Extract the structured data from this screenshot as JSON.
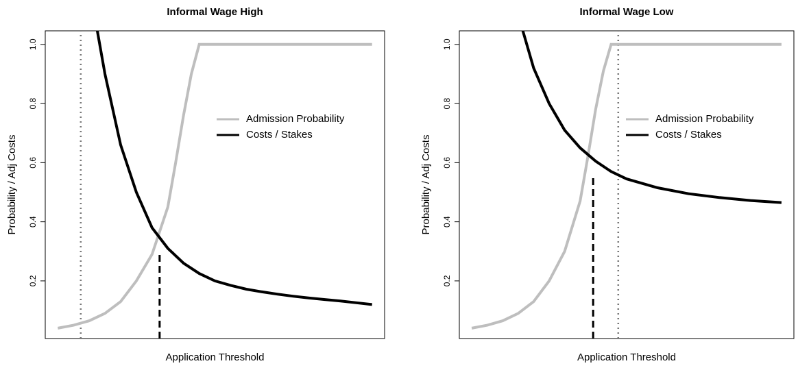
{
  "chart_data": [
    {
      "type": "line",
      "title": "Informal Wage High",
      "xlabel": "Application Threshold",
      "ylabel": "Probability / Adj Costs",
      "xlim": [
        -4,
        104
      ],
      "ylim": [
        0.005,
        1.046
      ],
      "yticks": [
        0.2,
        0.4,
        0.6,
        0.8,
        {
          "value": 1,
          "label": "1.0"
        }
      ],
      "legend": "right",
      "series": [
        {
          "name": "Admission Probability",
          "color": "#bebebe",
          "x": [
            0,
            5,
            10,
            15,
            20,
            25,
            30,
            35,
            37.5,
            40,
            42.5,
            45,
            100
          ],
          "values": [
            0.04,
            0.05,
            0.065,
            0.09,
            0.13,
            0.2,
            0.29,
            0.45,
            0.6,
            0.76,
            0.9,
            1,
            1
          ]
        },
        {
          "name": "Costs / Stakes",
          "color": "#000000",
          "x": [
            10,
            15,
            20,
            25,
            30,
            35,
            40,
            45,
            50,
            55,
            60,
            65,
            70,
            75,
            80,
            85,
            90,
            95,
            100
          ],
          "values": [
            1.2,
            0.9,
            0.66,
            0.5,
            0.38,
            0.31,
            0.26,
            0.225,
            0.2,
            0.185,
            0.172,
            0.163,
            0.155,
            0.148,
            0.142,
            0.137,
            0.132,
            0.126,
            0.12
          ]
        }
      ],
      "vlines": [
        {
          "x": 7.3,
          "style": "dotted",
          "color": "#777777"
        },
        {
          "x": 32.4,
          "top": 0.3,
          "style": "dashed",
          "color": "#000000"
        }
      ]
    },
    {
      "type": "line",
      "title": "Informal Wage Low",
      "xlabel": "Application Threshold",
      "ylabel": "Probability / Adj Costs",
      "xlim": [
        -4,
        104
      ],
      "ylim": [
        0.005,
        1.046
      ],
      "yticks": [
        0.2,
        0.4,
        0.6,
        0.8,
        {
          "value": 1,
          "label": "1.0"
        }
      ],
      "legend": "right",
      "series": [
        {
          "name": "Admission Probability",
          "color": "#bebebe",
          "x": [
            0,
            5,
            10,
            15,
            20,
            25,
            30,
            35,
            37.5,
            40,
            42.5,
            45,
            100
          ],
          "values": [
            0.04,
            0.05,
            0.065,
            0.09,
            0.13,
            0.2,
            0.3,
            0.47,
            0.62,
            0.78,
            0.91,
            1,
            1
          ]
        },
        {
          "name": "Costs / Stakes",
          "color": "#000000",
          "x": [
            15,
            20,
            25,
            30,
            35,
            40,
            45,
            50,
            60,
            70,
            80,
            90,
            100
          ],
          "values": [
            1.1,
            0.92,
            0.8,
            0.71,
            0.65,
            0.605,
            0.57,
            0.545,
            0.515,
            0.495,
            0.482,
            0.472,
            0.465
          ]
        }
      ],
      "vlines": [
        {
          "x": 47.3,
          "style": "dotted",
          "color": "#777777"
        },
        {
          "x": 39.2,
          "top": 0.56,
          "style": "dashed",
          "color": "#000000"
        }
      ]
    }
  ]
}
